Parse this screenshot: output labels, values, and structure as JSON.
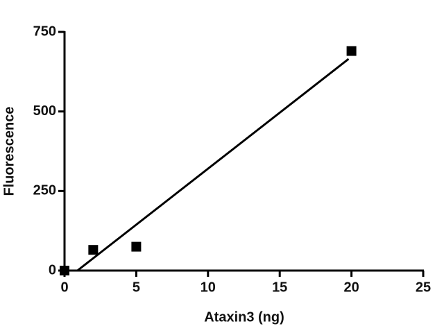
{
  "chart_data": {
    "type": "scatter",
    "x_label": "Ataxin3 (ng)",
    "y_label": "Fluorescence",
    "x": [
      0,
      2,
      5,
      20
    ],
    "values": [
      0,
      65,
      75,
      690
    ],
    "color": "#000000",
    "fit_line": {
      "x": [
        0.9,
        19.8
      ],
      "values": [
        0,
        665
      ],
      "color": "#000000"
    },
    "xlim": [
      0,
      25
    ],
    "xticks": [
      0,
      5,
      10,
      15,
      20,
      25
    ],
    "ylim": [
      0,
      750
    ],
    "yticks": [
      0,
      250,
      500,
      750
    ]
  }
}
